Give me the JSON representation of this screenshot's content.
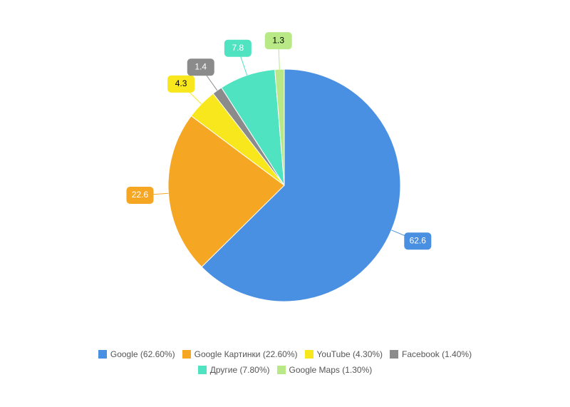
{
  "chart_data": {
    "type": "pie",
    "categories": [
      "Google (62.60%)",
      "Google Картинки (22.60%)",
      "YouTube (4.30%)",
      "Facebook (1.40%)",
      "Другие (7.80%)",
      "Google Maps (1.30%)"
    ],
    "values": [
      62.6,
      22.6,
      4.3,
      1.4,
      7.8,
      1.3
    ],
    "colors": [
      "#4a90e2",
      "#f5a623",
      "#f8e71c",
      "#8b8b8b",
      "#50e3c2",
      "#b8e986"
    ]
  }
}
